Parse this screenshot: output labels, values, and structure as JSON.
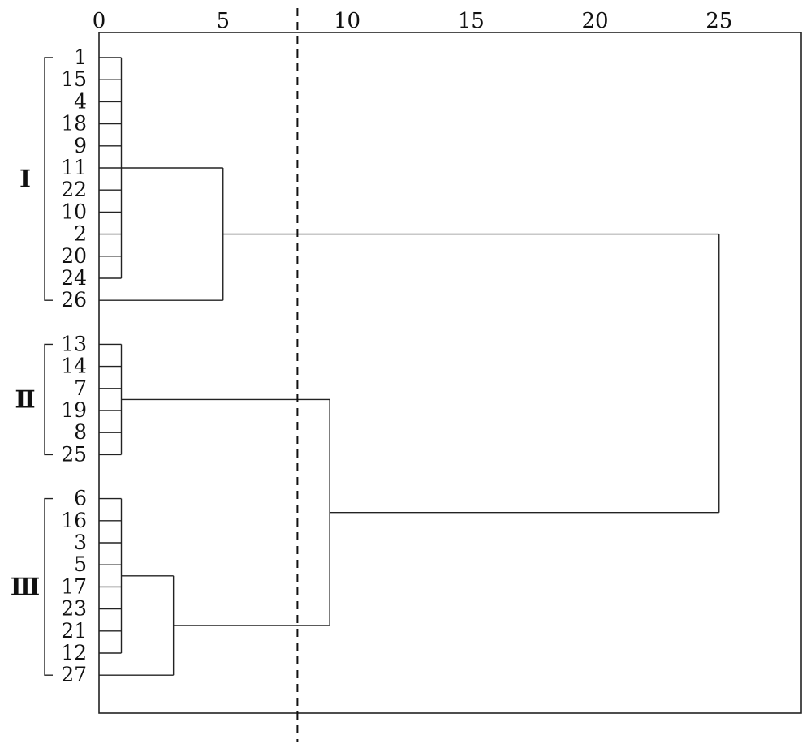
{
  "chart_data": {
    "type": "dendrogram",
    "x_ticks": [
      0,
      5,
      10,
      15,
      20,
      25
    ],
    "x_range": [
      0,
      28.5
    ],
    "cut_distance": 8,
    "clusters": [
      {
        "label": "I",
        "leaves": [
          "1",
          "15",
          "4",
          "18",
          "9",
          "11",
          "22",
          "10",
          "2",
          "20",
          "24",
          "26"
        ]
      },
      {
        "label": "Ⅱ",
        "leaves": [
          "13",
          "14",
          "7",
          "19",
          "8",
          "25"
        ]
      },
      {
        "label": "Ⅲ",
        "leaves": [
          "6",
          "16",
          "3",
          "5",
          "17",
          "23",
          "21",
          "12",
          "27"
        ]
      }
    ],
    "merges": [
      {
        "id": "A",
        "children": [
          "1",
          "15",
          "4",
          "18",
          "9",
          "11",
          "22",
          "10",
          "2",
          "20",
          "24"
        ],
        "distance": 0.9
      },
      {
        "id": "B",
        "children": [
          "A",
          "26"
        ],
        "distance": 5
      },
      {
        "id": "C",
        "children": [
          "13",
          "14",
          "7",
          "19",
          "8",
          "25"
        ],
        "distance": 0.9
      },
      {
        "id": "D",
        "children": [
          "6",
          "16",
          "3",
          "5",
          "17",
          "23",
          "21",
          "12"
        ],
        "distance": 0.9
      },
      {
        "id": "E",
        "children": [
          "D",
          "27"
        ],
        "distance": 3
      },
      {
        "id": "F",
        "children": [
          "C",
          "E"
        ],
        "distance": 9.3
      },
      {
        "id": "G",
        "children": [
          "B",
          "F"
        ],
        "distance": 25
      }
    ]
  }
}
